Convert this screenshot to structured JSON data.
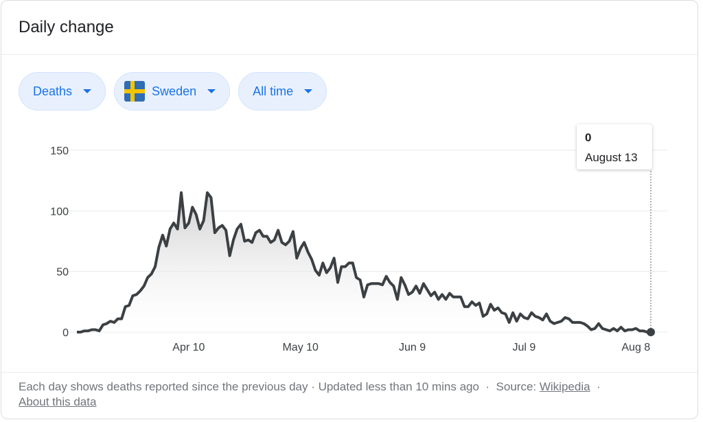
{
  "header": {
    "title": "Daily change"
  },
  "filters": [
    {
      "label": "Deaths",
      "icon": "caret-down-icon"
    },
    {
      "label": "Sweden",
      "icon": "sweden-flag-icon"
    },
    {
      "label": "All time",
      "icon": "caret-down-icon"
    }
  ],
  "tooltip": {
    "value": "0",
    "date": "August 13"
  },
  "footer": {
    "note": "Each day shows deaths reported since the previous day · Updated less than 10 mins ago",
    "sep1": "·",
    "source_label": "Source:",
    "source_link": "Wikipedia",
    "sep2": "·",
    "about_link": "About this data"
  },
  "chart_data": {
    "type": "area",
    "title": "",
    "xlabel": "",
    "ylabel": "",
    "ylim": [
      0,
      150
    ],
    "yticks": [
      "0",
      "50",
      "100",
      "150"
    ],
    "xticks": [
      "Apr 10",
      "May 10",
      "Jun 9",
      "Jul 9",
      "Aug 8"
    ],
    "grid": true,
    "x_start": "Mar 11",
    "x_end": "Aug 13",
    "values": [
      0,
      0,
      1,
      1,
      2,
      2,
      1,
      6,
      7,
      9,
      8,
      11,
      11,
      21,
      22,
      30,
      31,
      34,
      38,
      45,
      48,
      54,
      70,
      80,
      71,
      85,
      90,
      85,
      115,
      86,
      90,
      103,
      97,
      85,
      92,
      115,
      111,
      82,
      86,
      88,
      84,
      63,
      76,
      85,
      89,
      75,
      76,
      74,
      82,
      84,
      79,
      79,
      74,
      76,
      84,
      74,
      72,
      75,
      83,
      61,
      69,
      74,
      66,
      60,
      51,
      47,
      57,
      49,
      53,
      61,
      41,
      54,
      54,
      57,
      57,
      45,
      43,
      29,
      39,
      40,
      40,
      40,
      39,
      46,
      41,
      38,
      27,
      45,
      39,
      31,
      33,
      38,
      32,
      40,
      35,
      30,
      33,
      27,
      31,
      27,
      32,
      29,
      29,
      29,
      21,
      21,
      25,
      22,
      24,
      13,
      15,
      23,
      18,
      20,
      16,
      15,
      8,
      16,
      9,
      15,
      12,
      11,
      16,
      13,
      12,
      10,
      15,
      9,
      7,
      8,
      9,
      12,
      11,
      8,
      8,
      8,
      7,
      5,
      2,
      3,
      7,
      3,
      2,
      1,
      3,
      1,
      4,
      1,
      2,
      2,
      3,
      1,
      1,
      0,
      0
    ]
  }
}
